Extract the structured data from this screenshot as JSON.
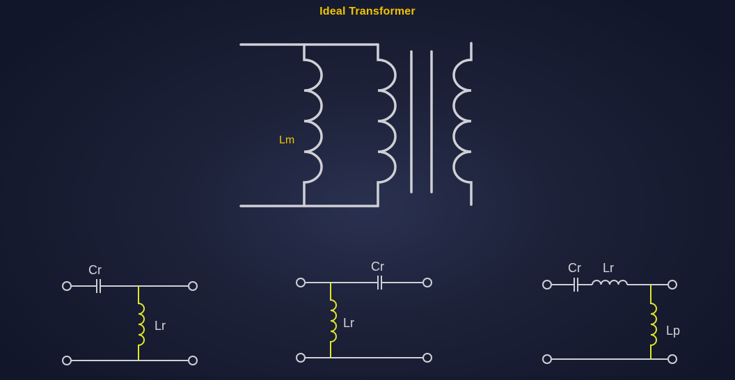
{
  "title": "Ideal Transformer",
  "labels": {
    "lm": "Lm",
    "c1_cr": "Cr",
    "c1_lr": "Lr",
    "c2_cr": "Cr",
    "c2_lr": "Lr",
    "c3_cr": "Cr",
    "c3_lr": "Lr",
    "c3_lp": "Lp"
  },
  "colors": {
    "wire": "#cfd0d6",
    "highlight": "#e4e62a",
    "title": "#f2c300",
    "lm_label": "#f2c300"
  }
}
